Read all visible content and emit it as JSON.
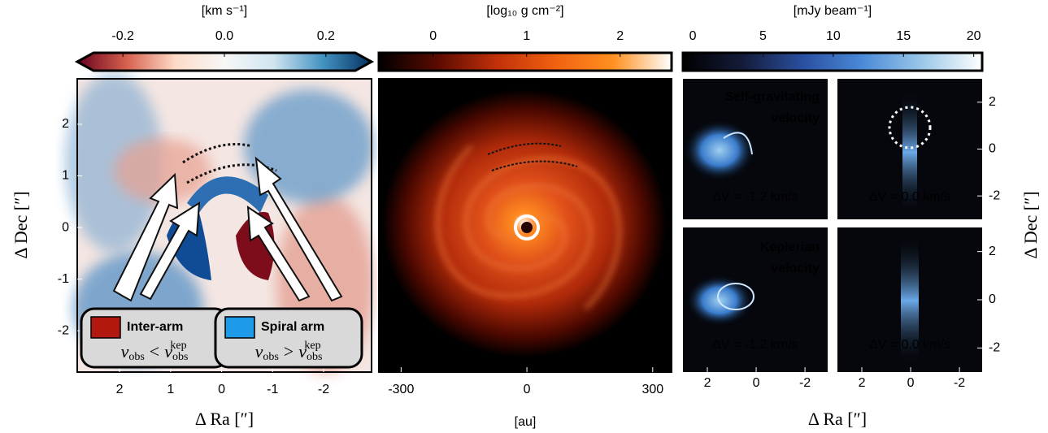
{
  "chart_data": [
    {
      "type": "image",
      "colorbar": {
        "label": "[km s⁻¹]",
        "lim": [
          -0.29,
          0.29
        ],
        "ticks": [
          -0.2,
          {
            "value": 0,
            "label": "0.0"
          },
          0.2
        ],
        "colors": [
          "#67001f",
          "#d6604d",
          "#fddbc7",
          "#f7f7f7",
          "#d1e5f0",
          "#4393c3",
          "#053061"
        ]
      },
      "xlim": [
        2.83,
        -2.94
      ],
      "xticks": [
        2,
        1,
        0,
        -1,
        -2
      ],
      "ylim": [
        -2.8,
        2.88
      ],
      "yticks": [
        -2,
        -1,
        0,
        1,
        2
      ],
      "xlabel": "Δ Ra [″]",
      "ylabel": "Δ Dec [″]",
      "legend": [
        {
          "name": "Inter-arm",
          "color": "#b2180e",
          "condition": [
            "v",
            "obs",
            "<",
            "v",
            "obs",
            "kep"
          ]
        },
        {
          "name": "Spiral arm",
          "color": "#1e9be8",
          "condition": [
            "v",
            "obs",
            ">",
            "v",
            "obs",
            "kep"
          ]
        }
      ]
    },
    {
      "type": "image",
      "colorbar": {
        "label": "[log₁₀ g cm⁻²]",
        "lim": [
          -0.58,
          2.55
        ],
        "ticks": [
          0,
          1,
          2
        ],
        "colors": [
          "#000000",
          "#5a0a00",
          "#c0300a",
          "#f06010",
          "#ff9020",
          "#ffffff"
        ]
      },
      "xlim": [
        -353,
        345
      ],
      "xticks": [
        -300,
        0,
        300
      ],
      "xlabel": "[au]"
    },
    {
      "type": "image",
      "colorbar": {
        "label": "[mJy beam⁻¹]",
        "lim": [
          -0.7,
          20.6
        ],
        "ticks": [
          0,
          5,
          10,
          15,
          20
        ],
        "colors": [
          "#000000",
          "#141c3a",
          "#2a4fa0",
          "#4a8ad8",
          "#9cc8e8",
          "#ffffff"
        ]
      },
      "xlim": [
        3,
        -2.93
      ],
      "xticks": [
        2,
        0,
        -2
      ],
      "ylim": [
        -3,
        3
      ],
      "yticks": [
        -2,
        0,
        2
      ],
      "xlabel": "Δ Ra [″]",
      "ylabel": "Δ Dec [″]",
      "rows": [
        {
          "label": [
            "Self-gravitating",
            "velocity"
          ],
          "velocities": [
            "ΔV = -1.2  km/s",
            "ΔV = 0.0   km/s"
          ]
        },
        {
          "label": [
            "Keplerian",
            "velocity"
          ],
          "velocities": [
            "ΔV = -1.2  km/s",
            "ΔV = 0.0   km/s"
          ]
        }
      ]
    }
  ]
}
